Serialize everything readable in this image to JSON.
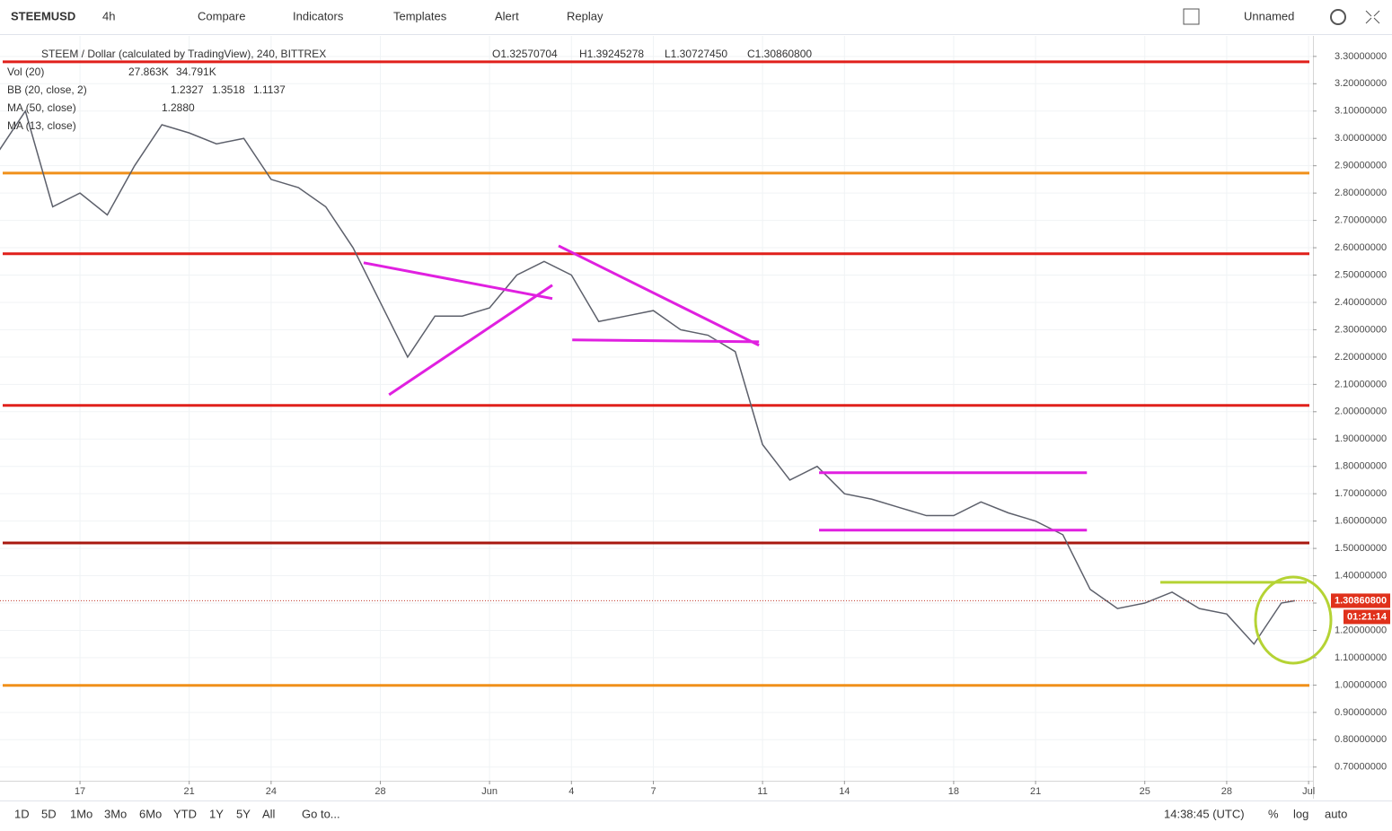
{
  "toolbar": {
    "symbol": "STEEMUSD",
    "interval": "4h",
    "buttons": [
      "Compare",
      "Indicators",
      "Templates",
      "Alert",
      "Replay"
    ],
    "layout_name": "Unnamed"
  },
  "chart_data": {
    "type": "line",
    "title": "STEEM / Dollar (calculated by TradingView), 240, BITTREX",
    "ohlc": [
      "O1.32570704",
      "H1.39245278",
      "L1.30727450",
      "C1.30860800"
    ],
    "indicators": [
      {
        "name": "Vol (20)",
        "readings": [
          "27.863K",
          "34.791K"
        ]
      },
      {
        "name": "BB (20, close, 2)",
        "readings": [
          "1.2327",
          "1.3518",
          "1.1137"
        ]
      },
      {
        "name": "MA (50, close)",
        "readings": [
          "1.2880"
        ]
      },
      {
        "name": "MA (13, close)",
        "readings": []
      }
    ],
    "x": [
      14,
      15,
      16,
      17,
      18,
      19,
      20,
      21,
      22,
      23,
      24,
      25,
      26,
      27,
      28,
      29,
      30,
      31,
      32,
      33,
      34,
      35,
      36,
      37,
      38,
      39,
      40,
      41,
      42,
      43,
      44,
      45,
      46,
      47,
      48,
      49,
      50,
      51,
      52,
      53,
      54,
      55,
      56,
      57,
      58,
      59,
      60,
      61,
      61.5
    ],
    "values": [
      2.95,
      3.1,
      2.75,
      2.8,
      2.72,
      2.9,
      3.05,
      3.02,
      2.98,
      3.0,
      2.85,
      2.82,
      2.75,
      2.6,
      2.4,
      2.2,
      2.35,
      2.35,
      2.38,
      2.5,
      2.55,
      2.5,
      2.33,
      2.35,
      2.37,
      2.3,
      2.28,
      2.22,
      1.88,
      1.75,
      1.8,
      1.7,
      1.68,
      1.65,
      1.62,
      1.62,
      1.67,
      1.63,
      1.6,
      1.55,
      1.35,
      1.28,
      1.3,
      1.34,
      1.28,
      1.26,
      1.15,
      1.3,
      1.3086
    ],
    "color": "#5d606b",
    "levels": [
      {
        "value": 3.28,
        "color": "#e0201b"
      },
      {
        "value": 2.873,
        "color": "#f0901a"
      },
      {
        "value": 2.578,
        "color": "#e0201b"
      },
      {
        "value": 2.023,
        "color": "#e0201b"
      },
      {
        "value": 1.52,
        "color": "#a8180f"
      },
      {
        "value": 0.999,
        "color": "#f0901a"
      }
    ],
    "trendlines": [
      {
        "x": [
          27.39,
          34.3
        ],
        "values": [
          2.545,
          2.414
        ],
        "color": "#e020e0"
      },
      {
        "x": [
          28.32,
          34.3
        ],
        "values": [
          2.062,
          2.463
        ],
        "color": "#e020e0"
      },
      {
        "x": [
          34.53,
          41.87
        ],
        "values": [
          2.607,
          2.243
        ],
        "color": "#e020e0"
      },
      {
        "x": [
          35.03,
          41.87
        ],
        "values": [
          2.263,
          2.256
        ],
        "color": "#e020e0"
      },
      {
        "x": [
          44.07,
          53.88
        ],
        "values": [
          1.777,
          1.777
        ],
        "color": "#e020e0"
      },
      {
        "x": [
          44.07,
          53.88
        ],
        "values": [
          1.567,
          1.567
        ],
        "color": "#e020e0"
      },
      {
        "x": [
          56.57,
          61.93
        ],
        "values": [
          1.376,
          1.376
        ],
        "color": "#b5d334"
      }
    ],
    "last_price": {
      "value": 1.3086,
      "label": "1.30860800"
    },
    "countdown": "01:21:14",
    "xlim": [
      14.07,
      62.16
    ],
    "xticks": [
      17,
      21,
      24,
      28,
      {
        "value": 32,
        "label": "Jun"
      },
      {
        "value": 35,
        "label": "4"
      },
      {
        "value": 38,
        "label": "7"
      },
      {
        "value": 42,
        "label": "11"
      },
      {
        "value": 45,
        "label": "14"
      },
      {
        "value": 49,
        "label": "18"
      },
      {
        "value": 52,
        "label": "21"
      },
      {
        "value": 56,
        "label": "25"
      },
      {
        "value": 59,
        "label": "28"
      },
      {
        "value": 62,
        "label": "Jul"
      }
    ],
    "ylim": [
      0.65,
      3.375
    ],
    "yticks": [
      {
        "value": 0.7,
        "label": "0.70000000"
      },
      {
        "value": 0.8,
        "label": "0.80000000"
      },
      {
        "value": 0.9,
        "label": "0.90000000"
      },
      {
        "value": 1.0,
        "label": "1.00000000"
      },
      {
        "value": 1.1,
        "label": "1.10000000"
      },
      {
        "value": 1.2,
        "label": "1.20000000"
      },
      {
        "value": 1.3,
        "label": "1.30000000"
      },
      {
        "value": 1.4,
        "label": "1.40000000"
      },
      {
        "value": 1.5,
        "label": "1.50000000"
      },
      {
        "value": 1.6,
        "label": "1.60000000"
      },
      {
        "value": 1.7,
        "label": "1.70000000"
      },
      {
        "value": 1.8,
        "label": "1.80000000"
      },
      {
        "value": 1.9,
        "label": "1.90000000"
      },
      {
        "value": 2.0,
        "label": "2.00000000"
      },
      {
        "value": 2.1,
        "label": "2.10000000"
      },
      {
        "value": 2.2,
        "label": "2.20000000"
      },
      {
        "value": 2.3,
        "label": "2.30000000"
      },
      {
        "value": 2.4,
        "label": "2.40000000"
      },
      {
        "value": 2.5,
        "label": "2.50000000"
      },
      {
        "value": 2.6,
        "label": "2.60000000"
      },
      {
        "value": 2.7,
        "label": "2.70000000"
      },
      {
        "value": 2.8,
        "label": "2.80000000"
      },
      {
        "value": 2.9,
        "label": "2.90000000"
      },
      {
        "value": 3.0,
        "label": "3.00000000"
      },
      {
        "value": 3.1,
        "label": "3.10000000"
      },
      {
        "value": 3.2,
        "label": "3.20000000"
      },
      {
        "value": 3.3,
        "label": "3.30000000"
      }
    ],
    "grid": true
  },
  "bottom_bar": {
    "ranges": [
      "1D",
      "5D",
      "1Mo",
      "3Mo",
      "6Mo",
      "YTD",
      "1Y",
      "5Y",
      "All"
    ],
    "goto": "Go to...",
    "time": "14:38:45 (UTC)",
    "options": [
      "%",
      "log",
      "auto"
    ]
  }
}
